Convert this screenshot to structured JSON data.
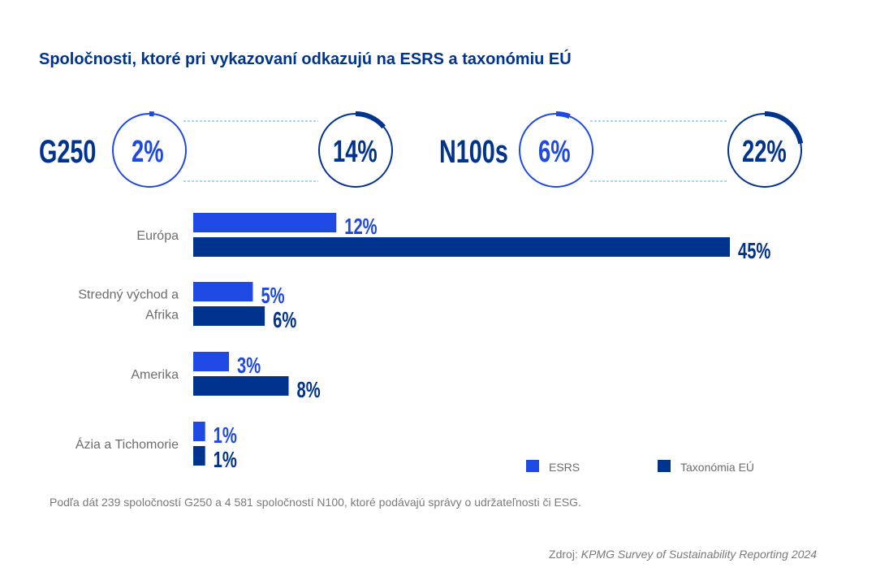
{
  "colors": {
    "esrs": "#1e49e2",
    "taxonomy": "#00338d",
    "dash": "#4fb3d6"
  },
  "chart_data": [
    {
      "type": "donut-pair",
      "groups": [
        {
          "label": "G250",
          "esrs": 2,
          "taxonomy": 14,
          "esrs_label": "2%",
          "taxonomy_label": "14%"
        },
        {
          "label": "N100s",
          "esrs": 6,
          "taxonomy": 22,
          "esrs_label": "6%",
          "taxonomy_label": "22%"
        }
      ]
    },
    {
      "type": "bar",
      "orientation": "horizontal",
      "title": "Spoločnosti, ktoré pri vykazovaní odkazujú na ESRS a taxonómiu EÚ",
      "categories": [
        "Európa",
        "Stredný východ a Afrika",
        "Amerika",
        "Ázia a Tichomorie"
      ],
      "category_lines": [
        [
          "Európa"
        ],
        [
          "Stredný východ a",
          "Afrika"
        ],
        [
          "Amerika"
        ],
        [
          "Ázia a Tichomorie"
        ]
      ],
      "series": [
        {
          "name": "ESRS",
          "values": [
            12,
            5,
            3,
            1
          ],
          "labels": [
            "12%",
            "5%",
            "3%",
            "1%"
          ]
        },
        {
          "name": "Taxonómia EÚ",
          "values": [
            45,
            6,
            8,
            1
          ],
          "labels": [
            "45%",
            "6%",
            "8%",
            "1%"
          ]
        }
      ],
      "legend": "bottom-right",
      "grid": false,
      "xlim": [
        0,
        45
      ]
    }
  ],
  "note": "Podľa dát 239 spoločností G250 a 4 581 spoločností N100, ktoré podávajú správy o udržateľnosti či ESG.",
  "source": {
    "prefix": "Zdroj: ",
    "title": "KPMG Survey of Sustainability Reporting 2024"
  }
}
